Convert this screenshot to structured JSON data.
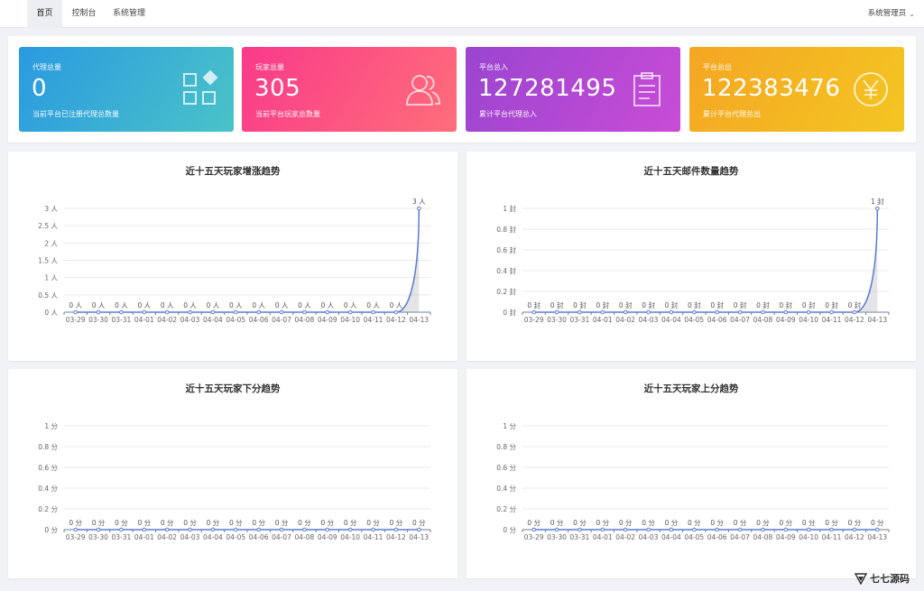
{
  "nav": {
    "tabs": [
      {
        "label": "首页",
        "active": true
      },
      {
        "label": "控制台",
        "active": false
      },
      {
        "label": "系统管理",
        "active": false
      }
    ],
    "user": "系统管理员"
  },
  "cards": [
    {
      "label": "代理总量",
      "value": "0",
      "desc": "当前平台已注册代理总数量",
      "icon": "grid-icon",
      "gradient": [
        "#2a9ae0",
        "#4ac3c8"
      ]
    },
    {
      "label": "玩家总量",
      "value": "305",
      "desc": "当前平台玩家总数量",
      "icon": "users-icon",
      "gradient": [
        "#f93a8a",
        "#ff6e7a"
      ]
    },
    {
      "label": "平台总入",
      "value": "127281495",
      "desc": "累计平台代理总入",
      "icon": "clipboard-icon",
      "gradient": [
        "#9a45d0",
        "#c94cd6"
      ]
    },
    {
      "label": "平台总出",
      "value": "122383476",
      "desc": "累计平台代理总出",
      "icon": "yen-icon",
      "gradient": [
        "#f5a623",
        "#f3c622"
      ]
    }
  ],
  "chart_data": [
    {
      "type": "line",
      "title": "近十五天玩家增涨趋势",
      "unit": "人",
      "x": [
        "03-29",
        "03-30",
        "03-31",
        "04-01",
        "04-02",
        "04-03",
        "04-04",
        "04-05",
        "04-06",
        "04-07",
        "04-08",
        "04-09",
        "04-10",
        "04-11",
        "04-12",
        "04-13"
      ],
      "y_ticks": [
        "0 人",
        "0.5 人",
        "1 人",
        "1.5 人",
        "2 人",
        "2.5 人",
        "3 人"
      ],
      "ylim": [
        0,
        3
      ],
      "values": [
        0,
        0,
        0,
        0,
        0,
        0,
        0,
        0,
        0,
        0,
        0,
        0,
        0,
        0,
        0,
        3
      ],
      "point_labels": [
        "0 人",
        "0 人",
        "0 人",
        "0 人",
        "0 人",
        "0 人",
        "0 人",
        "0 人",
        "0 人",
        "0 人",
        "0 人",
        "0 人",
        "0 人",
        "0 人",
        "0 人",
        "3 人"
      ],
      "color": "#5b7bd5"
    },
    {
      "type": "line",
      "title": "近十五天邮件数量趋势",
      "unit": "封",
      "x": [
        "03-29",
        "03-30",
        "03-31",
        "04-01",
        "04-02",
        "04-03",
        "04-04",
        "04-05",
        "04-06",
        "04-07",
        "04-08",
        "04-09",
        "04-10",
        "04-11",
        "04-12",
        "04-13"
      ],
      "y_ticks": [
        "0 封",
        "0.2 封",
        "0.4 封",
        "0.6 封",
        "0.8 封",
        "1 封"
      ],
      "ylim": [
        0,
        1
      ],
      "values": [
        0,
        0,
        0,
        0,
        0,
        0,
        0,
        0,
        0,
        0,
        0,
        0,
        0,
        0,
        0,
        1
      ],
      "point_labels": [
        "0 封",
        "0 封",
        "0 封",
        "0 封",
        "0 封",
        "0 封",
        "0 封",
        "0 封",
        "0 封",
        "0 封",
        "0 封",
        "0 封",
        "0 封",
        "0 封",
        "0 封",
        "1 封"
      ],
      "color": "#5b7bd5"
    },
    {
      "type": "line",
      "title": "近十五天玩家下分趋势",
      "unit": "分",
      "x": [
        "03-29",
        "03-30",
        "03-31",
        "04-01",
        "04-02",
        "04-03",
        "04-04",
        "04-05",
        "04-06",
        "04-07",
        "04-08",
        "04-09",
        "04-10",
        "04-11",
        "04-12",
        "04-13"
      ],
      "y_ticks": [
        "0 分",
        "0.2 分",
        "0.4 分",
        "0.6 分",
        "0.8 分",
        "1 分"
      ],
      "ylim": [
        0,
        1
      ],
      "values": [
        0,
        0,
        0,
        0,
        0,
        0,
        0,
        0,
        0,
        0,
        0,
        0,
        0,
        0,
        0,
        0
      ],
      "point_labels": [
        "0 分",
        "0 分",
        "0 分",
        "0 分",
        "0 分",
        "0 分",
        "0 分",
        "0 分",
        "0 分",
        "0 分",
        "0 分",
        "0 分",
        "0 分",
        "0 分",
        "0 分",
        "0 分"
      ],
      "color": "#5b7bd5"
    },
    {
      "type": "line",
      "title": "近十五天玩家上分趋势",
      "unit": "分",
      "x": [
        "03-29",
        "03-30",
        "03-31",
        "04-01",
        "04-02",
        "04-03",
        "04-04",
        "04-05",
        "04-06",
        "04-07",
        "04-08",
        "04-09",
        "04-10",
        "04-11",
        "04-12",
        "04-13"
      ],
      "y_ticks": [
        "0 分",
        "0.2 分",
        "0.4 分",
        "0.6 分",
        "0.8 分",
        "1 分"
      ],
      "ylim": [
        0,
        1
      ],
      "values": [
        0,
        0,
        0,
        0,
        0,
        0,
        0,
        0,
        0,
        0,
        0,
        0,
        0,
        0,
        0,
        0
      ],
      "point_labels": [
        "0 分",
        "0 分",
        "0 分",
        "0 分",
        "0 分",
        "0 分",
        "0 分",
        "0 分",
        "0 分",
        "0 分",
        "0 分",
        "0 分",
        "0 分",
        "0 分",
        "0 分",
        "0 分"
      ],
      "color": "#5b7bd5"
    }
  ],
  "watermark": {
    "text": "七七源码"
  }
}
